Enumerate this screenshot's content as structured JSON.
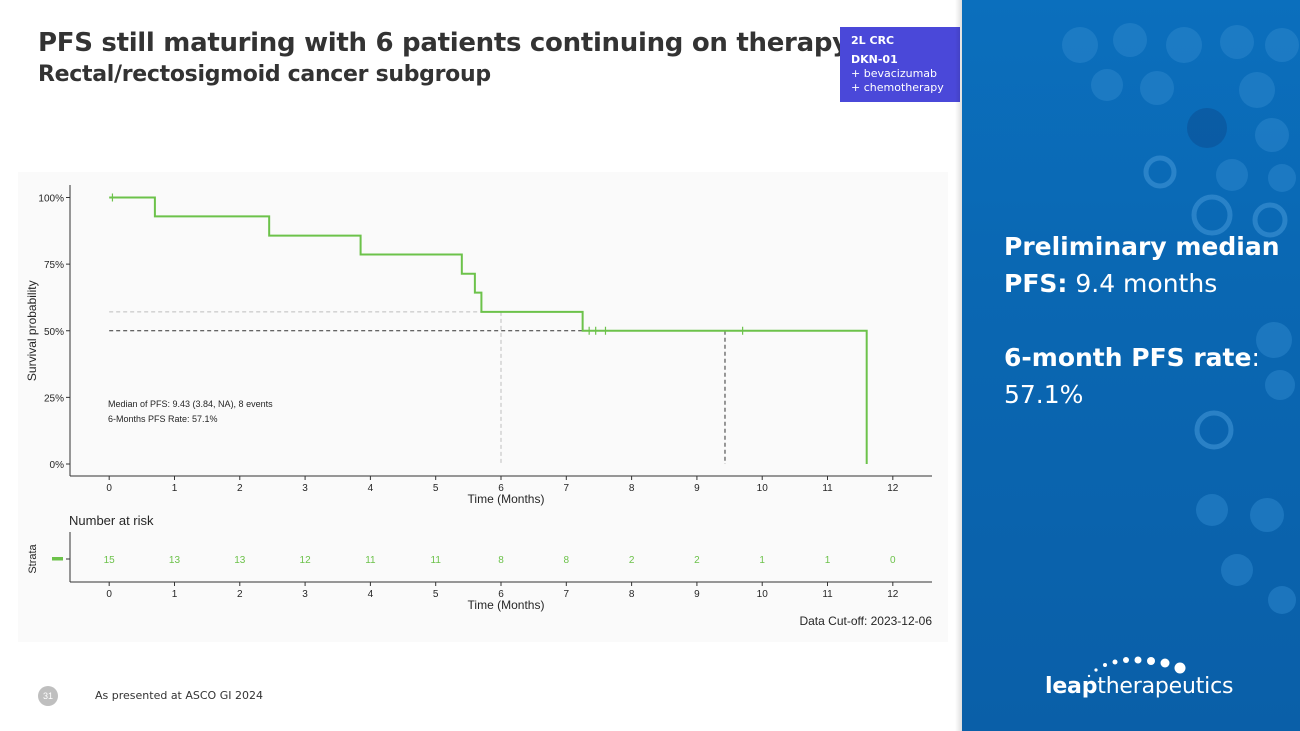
{
  "slide": {
    "title": "PFS still maturing with 6 patients continuing on therapy",
    "subtitle": "Rectal/rectosigmoid cancer subgroup",
    "page_number": "31",
    "footer": "As presented at ASCO GI 2024"
  },
  "badge": {
    "line1": "2L CRC",
    "line2": "DKN-01",
    "line3": "+ bevacizumab",
    "line4": "+ chemotherapy"
  },
  "panel": {
    "median_label_a": "Preliminary median",
    "median_label_b": "PFS:",
    "median_value": " 9.4 months",
    "rate_label": "6-month PFS rate",
    "rate_colon": ":",
    "rate_value": "57.1%",
    "background_color": "#0a66b2"
  },
  "logo": {
    "strong": "leap",
    "light": "therapeutics"
  },
  "chart_data": {
    "type": "line",
    "subtype": "kaplan-meier step",
    "color": "#6cc24a",
    "ylabel": "Survival probability",
    "xlabel": "Time (Months)",
    "x_ticks": [
      0,
      1,
      2,
      3,
      4,
      5,
      6,
      7,
      8,
      9,
      10,
      11,
      12
    ],
    "y_ticks": [
      0,
      25,
      50,
      75,
      100
    ],
    "y_tick_labels": [
      "0%",
      "25%",
      "50%",
      "75%",
      "100%"
    ],
    "xlim": [
      -0.6,
      12.6
    ],
    "ylim": [
      0,
      100
    ],
    "steps": [
      {
        "t": 0,
        "s": 100
      },
      {
        "t": 0.7,
        "s": 92.9
      },
      {
        "t": 2.45,
        "s": 85.7
      },
      {
        "t": 3.85,
        "s": 78.6
      },
      {
        "t": 5.4,
        "s": 71.4
      },
      {
        "t": 5.6,
        "s": 64.3
      },
      {
        "t": 5.7,
        "s": 57.1
      },
      {
        "t": 7.25,
        "s": 50.0
      },
      {
        "t": 11.6,
        "s": 0
      }
    ],
    "censor_times": [
      0.05,
      7.35,
      7.45,
      7.6,
      9.7
    ],
    "median_pfs": 9.43,
    "six_month_rate": 57.1,
    "annotation_line1": "Median of PFS: 9.43 (3.84, NA), 8 events",
    "annotation_line2": "6-Months PFS Rate: 57.1%",
    "risk_table": {
      "title": "Number at risk",
      "strata_label": "Strata",
      "counts": [
        15,
        13,
        13,
        12,
        11,
        11,
        8,
        8,
        2,
        2,
        1,
        1,
        0
      ],
      "xlabel": "Time (Months)"
    },
    "data_cutoff": "Data Cut-off: 2023-12-06"
  }
}
